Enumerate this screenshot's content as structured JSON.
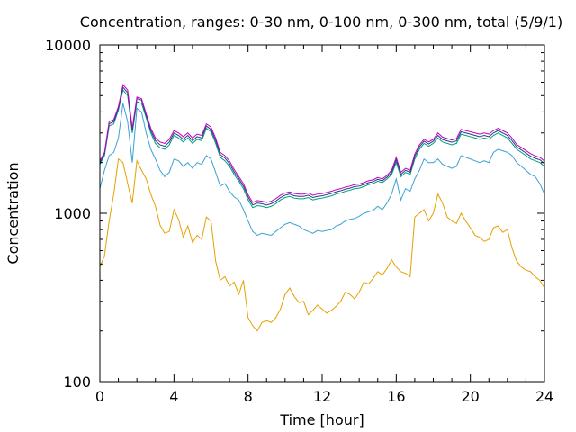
{
  "chart_data": {
    "type": "line",
    "title": "Concentration, ranges: 0-30 nm, 0-100 nm, 0-300 nm, total (5/9/1)",
    "xlabel": "Time [hour]",
    "ylabel": "Concentration",
    "xlim": [
      0,
      24
    ],
    "ylim": [
      100,
      10000
    ],
    "y_scale": "log",
    "x_ticks": [
      0,
      4,
      8,
      12,
      16,
      20,
      24
    ],
    "y_ticks": [
      100,
      1000,
      10000
    ],
    "x_tick_labels": [
      "0",
      "4",
      "8",
      "12",
      "16",
      "20",
      "24"
    ],
    "y_tick_labels": [
      "100",
      "1000",
      "10000"
    ],
    "grid": false,
    "legend": "none",
    "x": [
      0,
      0.25,
      0.5,
      0.75,
      1,
      1.25,
      1.5,
      1.75,
      2,
      2.25,
      2.5,
      2.75,
      3,
      3.25,
      3.5,
      3.75,
      4,
      4.25,
      4.5,
      4.75,
      5,
      5.25,
      5.5,
      5.75,
      6,
      6.25,
      6.5,
      6.75,
      7,
      7.25,
      7.5,
      7.75,
      8,
      8.25,
      8.5,
      8.75,
      9,
      9.25,
      9.5,
      9.75,
      10,
      10.25,
      10.5,
      10.75,
      11,
      11.25,
      11.5,
      11.75,
      12,
      12.25,
      12.5,
      12.75,
      13,
      13.25,
      13.5,
      13.75,
      14,
      14.25,
      14.5,
      14.75,
      15,
      15.25,
      15.5,
      15.75,
      16,
      16.25,
      16.5,
      16.75,
      17,
      17.25,
      17.5,
      17.75,
      18,
      18.25,
      18.5,
      18.75,
      19,
      19.25,
      19.5,
      19.75,
      20,
      20.25,
      20.5,
      20.75,
      21,
      21.25,
      21.5,
      21.75,
      22,
      22.25,
      22.5,
      22.75,
      23,
      23.25,
      23.5,
      23.75,
      24
    ],
    "series": [
      {
        "color": "#e6a000",
        "values": [
          480,
          560,
          900,
          1300,
          2100,
          2000,
          1500,
          1150,
          2050,
          1800,
          1600,
          1300,
          1100,
          850,
          760,
          780,
          1050,
          920,
          720,
          840,
          670,
          740,
          700,
          950,
          900,
          520,
          400,
          420,
          370,
          390,
          330,
          400,
          240,
          215,
          200,
          225,
          230,
          225,
          240,
          270,
          330,
          360,
          320,
          295,
          300,
          250,
          265,
          285,
          270,
          255,
          265,
          280,
          300,
          340,
          330,
          310,
          340,
          390,
          380,
          410,
          450,
          430,
          470,
          530,
          480,
          450,
          440,
          420,
          950,
          1000,
          1050,
          900,
          1000,
          1300,
          1150,
          950,
          900,
          870,
          1000,
          900,
          820,
          740,
          720,
          680,
          700,
          820,
          840,
          770,
          800,
          620,
          520,
          480,
          460,
          450,
          420,
          400,
          360
        ]
      },
      {
        "color": "#3aa2d4",
        "values": [
          1400,
          1800,
          2200,
          2300,
          2800,
          4500,
          3500,
          2000,
          4200,
          4000,
          3000,
          2400,
          2100,
          1800,
          1650,
          1750,
          2100,
          2050,
          1900,
          2000,
          1850,
          2000,
          1950,
          2200,
          2100,
          1750,
          1450,
          1500,
          1350,
          1250,
          1200,
          1050,
          900,
          780,
          740,
          760,
          750,
          740,
          780,
          820,
          860,
          880,
          860,
          840,
          800,
          780,
          760,
          790,
          780,
          790,
          800,
          840,
          860,
          900,
          920,
          930,
          960,
          1000,
          1020,
          1040,
          1100,
          1050,
          1150,
          1300,
          1600,
          1200,
          1400,
          1350,
          1600,
          1800,
          2100,
          2000,
          2000,
          2100,
          1950,
          1900,
          1850,
          1900,
          2200,
          2150,
          2100,
          2050,
          2000,
          2050,
          2000,
          2300,
          2400,
          2350,
          2300,
          2200,
          2000,
          1900,
          1800,
          1700,
          1650,
          1500,
          1300
        ]
      },
      {
        "color": "#009e73",
        "values": [
          1950,
          2200,
          3300,
          3400,
          4100,
          5400,
          5000,
          3000,
          4600,
          4500,
          3700,
          3000,
          2600,
          2450,
          2400,
          2550,
          2900,
          2800,
          2650,
          2800,
          2600,
          2750,
          2700,
          3200,
          3050,
          2600,
          2150,
          2050,
          1900,
          1700,
          1550,
          1400,
          1200,
          1080,
          1110,
          1100,
          1080,
          1100,
          1140,
          1200,
          1240,
          1260,
          1230,
          1220,
          1220,
          1240,
          1200,
          1220,
          1230,
          1250,
          1270,
          1300,
          1320,
          1350,
          1370,
          1400,
          1410,
          1440,
          1480,
          1500,
          1550,
          1520,
          1600,
          1700,
          2000,
          1650,
          1750,
          1700,
          2100,
          2400,
          2600,
          2500,
          2600,
          2800,
          2650,
          2600,
          2550,
          2600,
          2950,
          2900,
          2850,
          2800,
          2750,
          2800,
          2750,
          2900,
          3000,
          2900,
          2800,
          2600,
          2400,
          2300,
          2200,
          2100,
          2050,
          2000,
          1900
        ]
      },
      {
        "color": "#1f3f8f",
        "values": [
          2000,
          2250,
          3400,
          3500,
          4200,
          5600,
          5200,
          3100,
          4800,
          4700,
          3800,
          3100,
          2700,
          2550,
          2500,
          2650,
          3000,
          2900,
          2750,
          2900,
          2700,
          2850,
          2800,
          3300,
          3150,
          2700,
          2230,
          2130,
          1970,
          1760,
          1600,
          1450,
          1250,
          1120,
          1150,
          1140,
          1120,
          1140,
          1180,
          1240,
          1280,
          1300,
          1270,
          1260,
          1260,
          1280,
          1240,
          1260,
          1270,
          1290,
          1310,
          1340,
          1360,
          1390,
          1410,
          1440,
          1450,
          1480,
          1520,
          1540,
          1590,
          1560,
          1640,
          1750,
          2080,
          1700,
          1800,
          1750,
          2180,
          2480,
          2680,
          2580,
          2680,
          2900,
          2740,
          2690,
          2640,
          2690,
          3050,
          3000,
          2950,
          2900,
          2850,
          2900,
          2850,
          3000,
          3100,
          3000,
          2900,
          2700,
          2480,
          2380,
          2280,
          2180,
          2120,
          2080,
          1970
        ]
      },
      {
        "color": "#c000c0",
        "values": [
          2050,
          2300,
          3500,
          3600,
          4300,
          5800,
          5400,
          3200,
          4900,
          4800,
          3900,
          3200,
          2800,
          2650,
          2600,
          2750,
          3100,
          3000,
          2850,
          3000,
          2800,
          2950,
          2900,
          3400,
          3250,
          2800,
          2300,
          2200,
          2040,
          1820,
          1650,
          1500,
          1290,
          1160,
          1190,
          1180,
          1160,
          1180,
          1220,
          1280,
          1320,
          1340,
          1310,
          1300,
          1300,
          1320,
          1280,
          1300,
          1310,
          1330,
          1350,
          1380,
          1400,
          1430,
          1450,
          1480,
          1490,
          1520,
          1560,
          1580,
          1630,
          1600,
          1680,
          1800,
          2150,
          1750,
          1850,
          1800,
          2250,
          2550,
          2750,
          2650,
          2750,
          3000,
          2830,
          2780,
          2720,
          2780,
          3150,
          3100,
          3050,
          3000,
          2950,
          3000,
          2950,
          3100,
          3200,
          3100,
          3000,
          2800,
          2560,
          2460,
          2360,
          2260,
          2190,
          2150,
          2040
        ]
      }
    ]
  }
}
